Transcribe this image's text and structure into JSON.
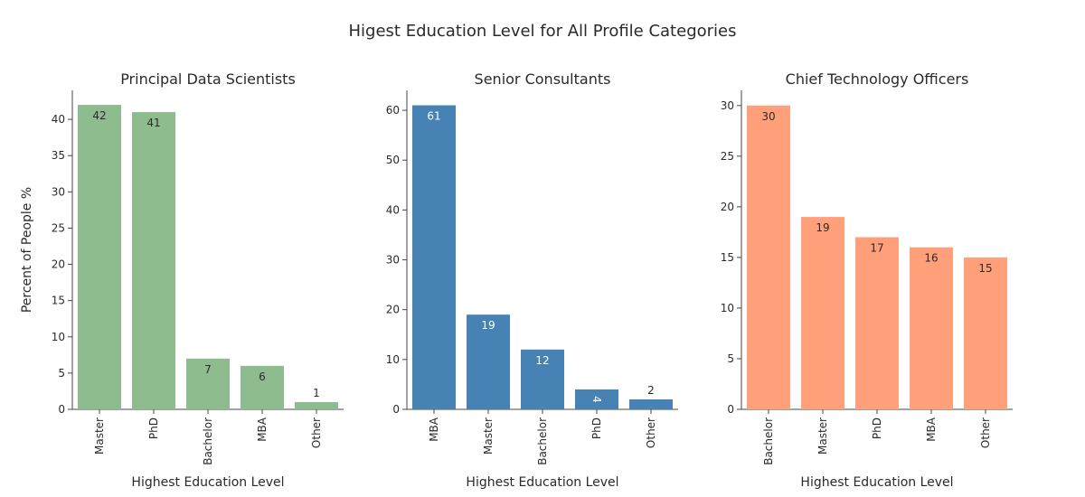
{
  "title": "Higest Education Level for All Profile Categories",
  "chart_data": [
    {
      "type": "bar",
      "title": "Principal Data Scientists",
      "xlabel": "Highest Education Level",
      "ylabel": "Percent of People %",
      "categories": [
        "Master",
        "PhD",
        "Bachelor",
        "MBA",
        "Other"
      ],
      "values": [
        42,
        41,
        7,
        6,
        1
      ],
      "ylim": [
        0,
        44
      ],
      "yticks": [
        0,
        5,
        10,
        15,
        20,
        25,
        30,
        35,
        40
      ],
      "color": "#8fbc8f",
      "label_color": "#2a2a2a"
    },
    {
      "type": "bar",
      "title": "Senior Consultants",
      "xlabel": "Highest Education Level",
      "ylabel": "",
      "categories": [
        "MBA",
        "Master",
        "Bachelor",
        "PhD",
        "Other"
      ],
      "values": [
        61,
        19,
        12,
        4,
        2
      ],
      "ylim": [
        0,
        64
      ],
      "yticks": [
        0,
        10,
        20,
        30,
        40,
        50,
        60
      ],
      "color": "#4682b4",
      "label_color": "#ffffff"
    },
    {
      "type": "bar",
      "title": "Chief Technology Officers",
      "xlabel": "Highest Education Level",
      "ylabel": "",
      "categories": [
        "Bachelor",
        "Master",
        "PhD",
        "MBA",
        "Other"
      ],
      "values": [
        30,
        19,
        17,
        16,
        15
      ],
      "ylim": [
        0,
        31.5
      ],
      "yticks": [
        0,
        5,
        10,
        15,
        20,
        25,
        30
      ],
      "color": "#ffa07a",
      "label_color": "#2a2a2a"
    }
  ]
}
